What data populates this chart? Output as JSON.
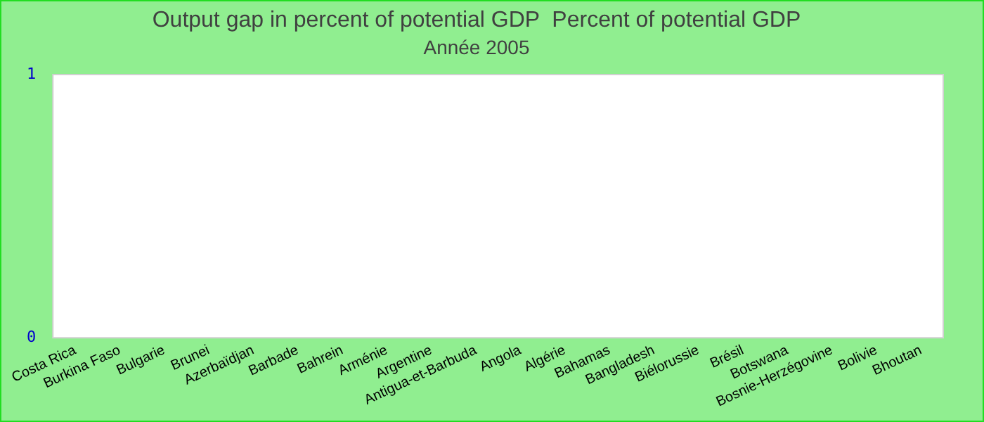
{
  "chart_data": {
    "type": "bar",
    "title": "Output gap in percent of potential GDP  Percent of potential GDP",
    "subtitle": "Année 2005",
    "categories": [
      "Costa Rica",
      "Burkina Faso",
      "Bulgarie",
      "Brunei",
      "Azerbaïdjan",
      "Barbade",
      "Bahrein",
      "Arménie",
      "Argentine",
      "Antigua-et-Barbuda",
      "Angola",
      "Algérie",
      "Bahamas",
      "Bangladesh",
      "Biélorussie",
      "Brésil",
      "Botswana",
      "Bosnie-Herzégovine",
      "Bolivie",
      "Bhoutan"
    ],
    "values": [
      null,
      null,
      null,
      null,
      null,
      null,
      null,
      null,
      null,
      null,
      null,
      null,
      null,
      null,
      null,
      null,
      null,
      null,
      null,
      null
    ],
    "ylim": [
      0,
      1
    ],
    "yticks": [
      0,
      1
    ],
    "grid": false,
    "legend": false
  }
}
